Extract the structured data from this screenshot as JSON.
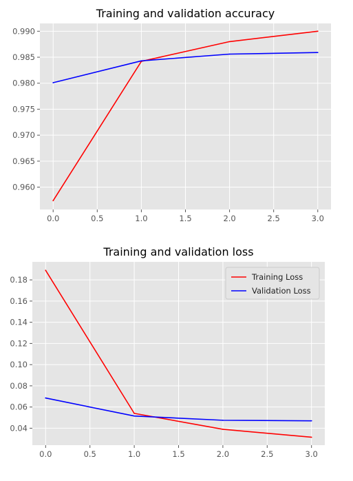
{
  "chart_data": [
    {
      "type": "line",
      "title": "Training and validation accuracy",
      "xlabel": "",
      "ylabel": "",
      "x": [
        0,
        1,
        2,
        3
      ],
      "xlim": [
        -0.15,
        3.15
      ],
      "ylim": [
        0.9557,
        0.9915
      ],
      "xticks": [
        "0.0",
        "0.5",
        "1.0",
        "1.5",
        "2.0",
        "2.5",
        "3.0"
      ],
      "xtick_values": [
        0,
        0.5,
        1,
        1.5,
        2,
        2.5,
        3
      ],
      "yticks": [
        "0.960",
        "0.965",
        "0.970",
        "0.975",
        "0.980",
        "0.985",
        "0.990"
      ],
      "ytick_values": [
        0.96,
        0.965,
        0.97,
        0.975,
        0.98,
        0.985,
        0.99
      ],
      "grid": true,
      "legend": null,
      "series": [
        {
          "values": [
            0.9574,
            0.9842,
            0.988,
            0.99
          ],
          "color": "#ff0000"
        },
        {
          "values": [
            0.9801,
            0.9843,
            0.9856,
            0.9859
          ],
          "color": "#0000ff"
        }
      ]
    },
    {
      "type": "line",
      "title": "Training and validation loss",
      "xlabel": "",
      "ylabel": "",
      "x": [
        0,
        1,
        2,
        3
      ],
      "xlim": [
        -0.15,
        3.15
      ],
      "ylim": [
        0.024,
        0.197
      ],
      "xticks": [
        "0.0",
        "0.5",
        "1.0",
        "1.5",
        "2.0",
        "2.5",
        "3.0"
      ],
      "xtick_values": [
        0,
        0.5,
        1,
        1.5,
        2,
        2.5,
        3
      ],
      "yticks": [
        "0.04",
        "0.06",
        "0.08",
        "0.10",
        "0.12",
        "0.14",
        "0.16",
        "0.18"
      ],
      "ytick_values": [
        0.04,
        0.06,
        0.08,
        0.1,
        0.12,
        0.14,
        0.16,
        0.18
      ],
      "grid": true,
      "legend": "top-right",
      "series": [
        {
          "name": "Training Loss",
          "values": [
            0.189,
            0.054,
            0.039,
            0.0315
          ],
          "color": "#ff0000"
        },
        {
          "name": "Validation Loss",
          "values": [
            0.0685,
            0.0515,
            0.0475,
            0.047
          ],
          "color": "#0000ff"
        }
      ]
    }
  ],
  "style": {
    "axes_background": "#e5e5e5",
    "grid_color": "#ffffff",
    "tick_color": "#555555"
  }
}
